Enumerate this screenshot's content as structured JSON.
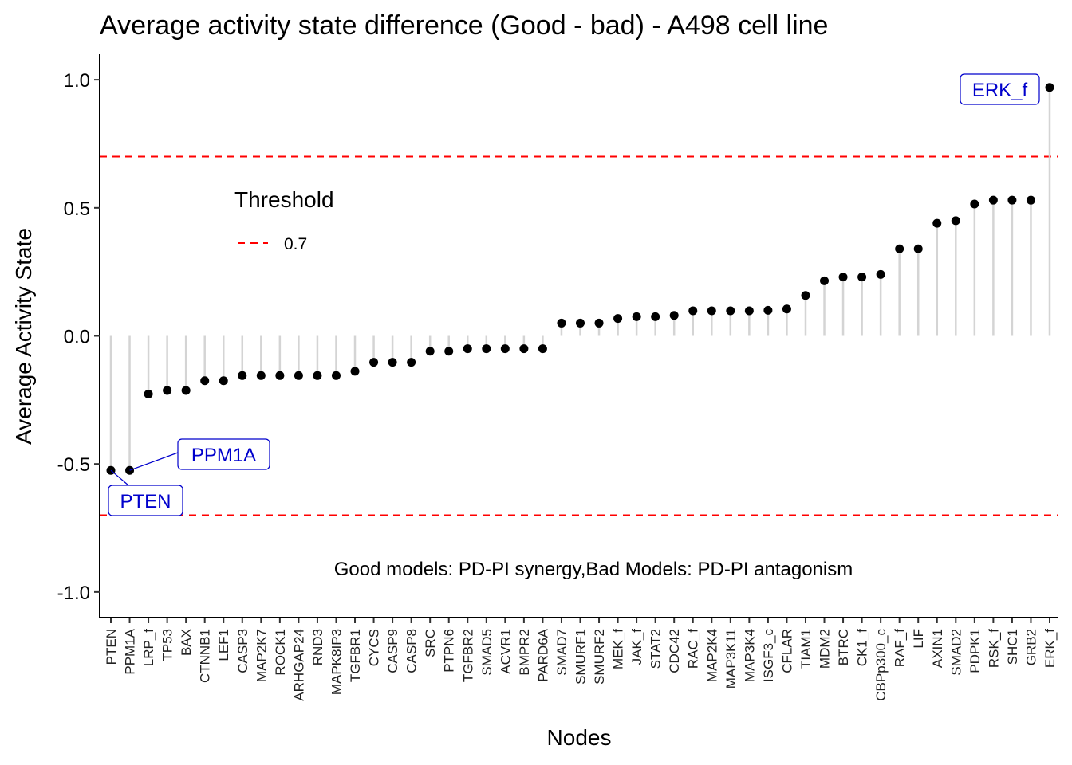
{
  "chart_data": {
    "type": "scatter",
    "title": "Average activity state difference (Good - bad) - A498 cell line",
    "xlabel": "Nodes",
    "ylabel": "Average Activity State",
    "ylim": [
      -1.1,
      1.1
    ],
    "yticks": [
      1.0,
      0.5,
      0.0,
      -0.5,
      -1.0
    ],
    "ytick_labels": [
      "1.0",
      "0.5",
      "0.0",
      "-0.5",
      "-1.0"
    ],
    "grid": false,
    "categories": [
      "PTEN",
      "PPM1A",
      "LRP_f",
      "TP53",
      "BAX",
      "CTNNB1",
      "LEF1",
      "CASP3",
      "MAP2K7",
      "ROCK1",
      "ARHGAP24",
      "RND3",
      "MAPK8IP3",
      "TGFBR1",
      "CYCS",
      "CASP9",
      "CASP8",
      "SRC",
      "PTPN6",
      "TGFBR2",
      "SMAD5",
      "ACVR1",
      "BMPR2",
      "PARD6A",
      "SMAD7",
      "SMURF1",
      "SMURF2",
      "MEK_f",
      "JAK_f",
      "STAT2",
      "CDC42",
      "RAC_f",
      "MAP2K4",
      "MAP3K11",
      "MAP3K4",
      "ISGF3_c",
      "CFLAR",
      "TIAM1",
      "MDM2",
      "BTRC",
      "CK1_f",
      "CBPp300_c",
      "RAF_f",
      "LIF",
      "AXIN1",
      "SMAD2",
      "PDPK1",
      "RSK_f",
      "SHC1",
      "GRB2",
      "ERK_f"
    ],
    "values": [
      -0.525,
      -0.525,
      -0.227,
      -0.213,
      -0.213,
      -0.175,
      -0.175,
      -0.155,
      -0.155,
      -0.155,
      -0.155,
      -0.155,
      -0.155,
      -0.138,
      -0.103,
      -0.103,
      -0.103,
      -0.06,
      -0.06,
      -0.05,
      -0.05,
      -0.05,
      -0.05,
      -0.05,
      0.05,
      0.05,
      0.05,
      0.068,
      0.075,
      0.075,
      0.08,
      0.098,
      0.098,
      0.098,
      0.098,
      0.1,
      0.105,
      0.158,
      0.215,
      0.23,
      0.23,
      0.24,
      0.34,
      0.34,
      0.44,
      0.45,
      0.515,
      0.53,
      0.53,
      0.53,
      0.97
    ],
    "colors": {
      "point": "#000000",
      "stem": "#d4d4d4",
      "threshold": "#ff0000",
      "callout": "#0000cc"
    },
    "thresholds": [
      0.7,
      -0.7
    ],
    "legend": {
      "title": "Threshold",
      "label": "0.7",
      "placement": "top-left"
    },
    "annotations": [
      {
        "node": "ERK_f",
        "label": "ERK_f"
      },
      {
        "node": "PPM1A",
        "label": "PPM1A"
      },
      {
        "node": "PTEN",
        "label": "PTEN"
      }
    ],
    "note": "Good models: PD-PI synergy,Bad Models: PD-PI antagonism"
  }
}
